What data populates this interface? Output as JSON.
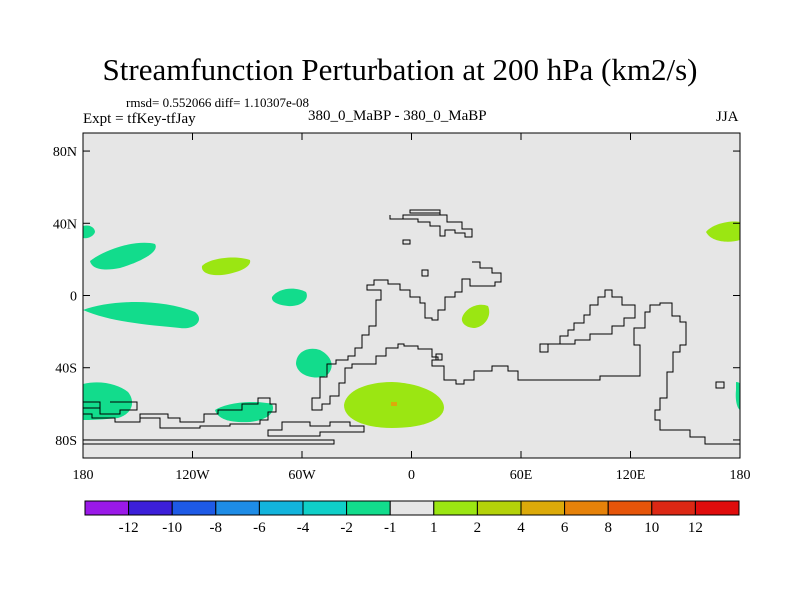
{
  "title": "Streamfunction Perturbation at 200 hPa (km2/s)",
  "stats": "rmsd= 0.552066 diff= 1.10307e-08",
  "left_label": "Expt = tfKey-tfJay",
  "center_label": "380_0_MaBP - 380_0_MaBP",
  "right_label": "JJA",
  "map": {
    "lon_range": [
      -180,
      180
    ],
    "lat_range": [
      -90,
      90
    ],
    "x_ticks": [
      {
        "lon": -180,
        "label": "180"
      },
      {
        "lon": -120,
        "label": "120W"
      },
      {
        "lon": -60,
        "label": "60W"
      },
      {
        "lon": 0,
        "label": "0"
      },
      {
        "lon": 60,
        "label": "60E"
      },
      {
        "lon": 120,
        "label": "120E"
      },
      {
        "lon": 180,
        "label": "180"
      }
    ],
    "y_ticks": [
      {
        "lat": 80,
        "label": "80N"
      },
      {
        "lat": 40,
        "label": "40N"
      },
      {
        "lat": 0,
        "label": "0"
      },
      {
        "lat": -40,
        "label": "40S"
      },
      {
        "lat": -80,
        "label": "80S"
      }
    ],
    "background_color": "#e6e6e6"
  },
  "colorbar": {
    "labels": [
      "-12",
      "-10",
      "-8",
      "-6",
      "-4",
      "-2",
      "-1",
      "1",
      "2",
      "4",
      "6",
      "8",
      "10",
      "12"
    ],
    "colors": [
      "#9a19e8",
      "#3c1fd9",
      "#1e5ae6",
      "#1e8ce6",
      "#12b4dc",
      "#10cfc8",
      "#12dc8c",
      "#e6e6e6",
      "#9be612",
      "#b4d20a",
      "#dcaa0a",
      "#e6820a",
      "#e6550a",
      "#dc2814",
      "#e00c0c"
    ]
  }
}
